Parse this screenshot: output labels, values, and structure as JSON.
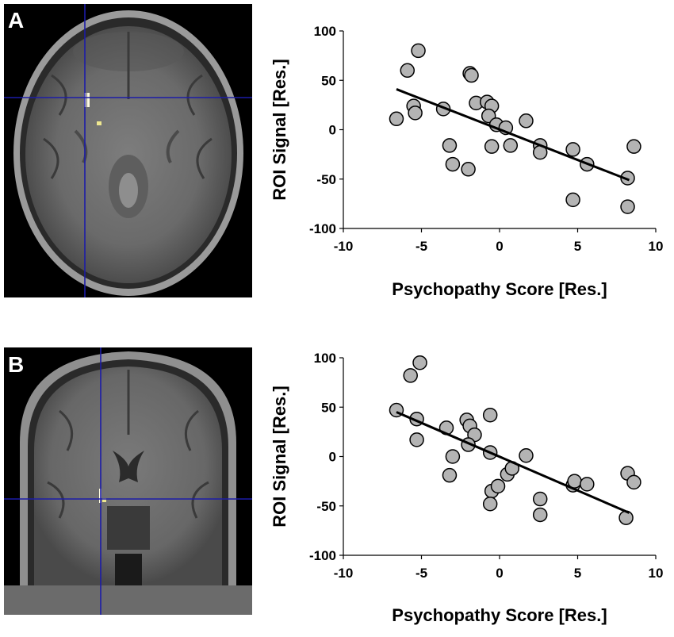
{
  "panels": [
    {
      "letter": "A",
      "image": "axial-brain-mri-slice",
      "chart_data": {
        "type": "scatter",
        "xlabel": "Psychopathy Score [Res.]",
        "ylabel": "ROI Signal [Res.]",
        "xlim": [
          -10,
          10
        ],
        "ylim": [
          -100,
          100
        ],
        "xticks": [
          -10,
          -5,
          0,
          5,
          10
        ],
        "yticks": [
          -100,
          -50,
          0,
          50,
          100
        ],
        "grid": false,
        "marker_color": "#b4b4b4",
        "line_color": "#000000",
        "points": [
          [
            -6.6,
            11
          ],
          [
            -5.9,
            60
          ],
          [
            -5.2,
            80
          ],
          [
            -5.5,
            24
          ],
          [
            -5.4,
            17
          ],
          [
            -3.6,
            21
          ],
          [
            -3.2,
            -16
          ],
          [
            -3.0,
            -35
          ],
          [
            -2.0,
            -40
          ],
          [
            -1.9,
            57
          ],
          [
            -1.8,
            55
          ],
          [
            -1.5,
            27
          ],
          [
            -0.8,
            28
          ],
          [
            -0.5,
            24
          ],
          [
            -0.7,
            14
          ],
          [
            -0.5,
            -17
          ],
          [
            -0.2,
            5
          ],
          [
            0.4,
            2
          ],
          [
            0.7,
            -16
          ],
          [
            1.7,
            9
          ],
          [
            2.6,
            -16
          ],
          [
            2.6,
            -23
          ],
          [
            4.7,
            -20
          ],
          [
            4.7,
            -71
          ],
          [
            5.6,
            -35
          ],
          [
            8.2,
            -49
          ],
          [
            8.2,
            -78
          ],
          [
            8.6,
            -17
          ]
        ],
        "fit_line": {
          "x": [
            -6.6,
            8.3
          ],
          "y": [
            41,
            -51
          ]
        }
      }
    },
    {
      "letter": "B",
      "image": "coronal-brain-mri-slice",
      "chart_data": {
        "type": "scatter",
        "xlabel": "Psychopathy Score [Res.]",
        "ylabel": "ROI Signal [Res.]",
        "xlim": [
          -10,
          10
        ],
        "ylim": [
          -100,
          100
        ],
        "xticks": [
          -10,
          -5,
          0,
          5,
          10
        ],
        "yticks": [
          -100,
          -50,
          0,
          50,
          100
        ],
        "grid": false,
        "marker_color": "#b4b4b4",
        "line_color": "#000000",
        "points": [
          [
            -6.6,
            47
          ],
          [
            -5.7,
            82
          ],
          [
            -5.1,
            95
          ],
          [
            -5.3,
            38
          ],
          [
            -5.3,
            17
          ],
          [
            -3.4,
            29
          ],
          [
            -3.0,
            0
          ],
          [
            -3.2,
            -19
          ],
          [
            -2.1,
            37
          ],
          [
            -1.9,
            31
          ],
          [
            -1.6,
            22
          ],
          [
            -2.0,
            12
          ],
          [
            -0.6,
            42
          ],
          [
            -0.6,
            4
          ],
          [
            -0.5,
            -35
          ],
          [
            -0.6,
            -48
          ],
          [
            -0.1,
            -30
          ],
          [
            0.5,
            -18
          ],
          [
            0.8,
            -12
          ],
          [
            1.7,
            1
          ],
          [
            2.6,
            -43
          ],
          [
            2.6,
            -59
          ],
          [
            4.7,
            -29
          ],
          [
            4.8,
            -25
          ],
          [
            5.6,
            -28
          ],
          [
            8.2,
            -17
          ],
          [
            8.6,
            -26
          ],
          [
            8.1,
            -62
          ]
        ],
        "fit_line": {
          "x": [
            -6.6,
            8.3
          ],
          "y": [
            45,
            -57
          ]
        }
      }
    }
  ]
}
